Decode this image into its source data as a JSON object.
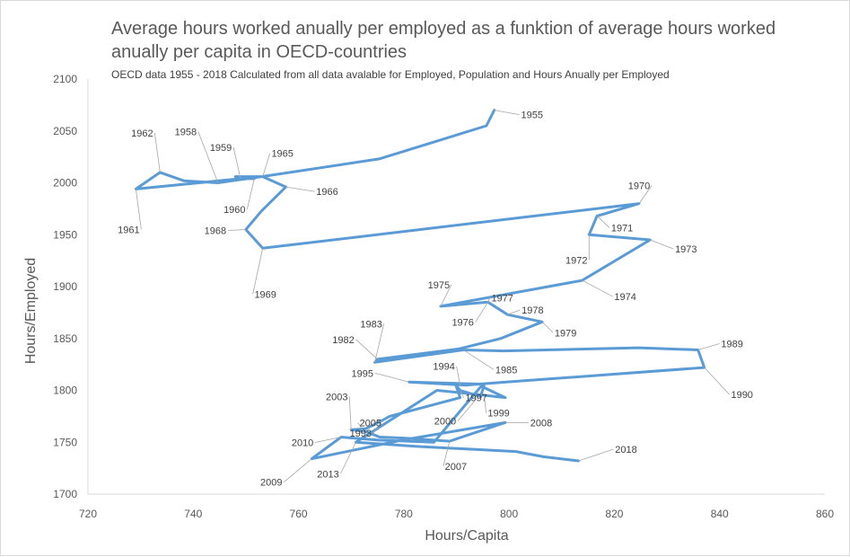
{
  "chart_data": {
    "type": "line",
    "title": "Average hours worked anually per employed as a funktion of average hours worked anually per capita in OECD-countries",
    "subtitle": "OECD data 1955  - 2018  Calculated from all data avalable for Employed, Population and Hours Anually per Employed",
    "xlabel": "Hours/Capita",
    "ylabel": "Hours/Employed",
    "xlim": [
      720,
      860
    ],
    "ylim": [
      1700,
      2100
    ],
    "xticks": [
      720,
      740,
      760,
      780,
      800,
      820,
      840,
      860
    ],
    "yticks": [
      1700,
      1750,
      1800,
      1850,
      1900,
      1950,
      2000,
      2050,
      2100
    ],
    "grid": false,
    "color": "#5b9bd5",
    "series": [
      {
        "x": [
          797.2,
          795.7,
          775.3,
          753.0,
          744.7,
          738.2,
          733.7,
          729.1,
          749.0,
          751.6,
          748.0,
          753.2,
          757.6,
          753.0,
          750.0,
          753.2,
          824.7,
          816.7,
          815.2,
          826.8,
          813.9,
          787.0,
          796.0,
          799.7,
          806.3,
          798.4,
          790.5,
          775.0,
          774.5,
          791.3,
          799.0,
          824.7,
          835.9,
          837.1,
          799.4,
          791.7,
          781.0,
          795.3,
          794.6,
          790.7,
          789.9,
          790.7,
          777.3,
          775.9,
          772.8,
          770.0,
          773.0,
          775.4,
          780.0,
          788.7,
          799.3,
          779.7,
          762.5,
          768.1,
          775.2,
          785.7,
          794.7,
          799.3,
          794.0,
          786.3,
          770.9,
          782.4,
          801.3,
          806.5,
          813.2
        ],
        "y": [
          2070,
          2055,
          2023,
          2006,
          2000,
          2002,
          2010,
          1994,
          2004,
          2004,
          2006,
          2006,
          1996,
          1973,
          1955,
          1937,
          1980,
          1968,
          1950,
          1945,
          1906,
          1881,
          1885,
          1873,
          1866,
          1850,
          1840,
          1830,
          1827,
          1839,
          1838,
          1841,
          1839,
          1822,
          1808,
          1805,
          1808,
          1806,
          1794,
          1800,
          1805,
          1793,
          1775,
          1771,
          1763,
          1762,
          1760,
          1755,
          1754,
          1751,
          1769,
          1752,
          1734,
          1755,
          1752,
          1750,
          1804,
          1793,
          1796,
          1800,
          1750,
          1746,
          1741,
          1736,
          1732
        ]
      }
    ],
    "point_labels": [
      {
        "text": "1955",
        "x": 797.2,
        "y": 2070
      },
      {
        "text": "1958",
        "x": 744.7,
        "y": 2000
      },
      {
        "text": "1959",
        "x": 749.0,
        "y": 2004
      },
      {
        "text": "1960",
        "x": 751.6,
        "y": 2004
      },
      {
        "text": "1961",
        "x": 729.1,
        "y": 1994
      },
      {
        "text": "1962",
        "x": 733.7,
        "y": 2010
      },
      {
        "text": "1965",
        "x": 753.2,
        "y": 2006
      },
      {
        "text": "1966",
        "x": 757.6,
        "y": 1996
      },
      {
        "text": "1968",
        "x": 750.0,
        "y": 1955
      },
      {
        "text": "1969",
        "x": 753.2,
        "y": 1937
      },
      {
        "text": "1970",
        "x": 824.7,
        "y": 1980
      },
      {
        "text": "1971",
        "x": 816.7,
        "y": 1968
      },
      {
        "text": "1972",
        "x": 815.2,
        "y": 1950
      },
      {
        "text": "1973",
        "x": 826.8,
        "y": 1945
      },
      {
        "text": "1974",
        "x": 813.9,
        "y": 1906
      },
      {
        "text": "1975",
        "x": 787.0,
        "y": 1881
      },
      {
        "text": "1976",
        "x": 796.0,
        "y": 1885
      },
      {
        "text": "1977",
        "x": 796.0,
        "y": 1885
      },
      {
        "text": "1978",
        "x": 799.7,
        "y": 1873
      },
      {
        "text": "1979",
        "x": 806.3,
        "y": 1866
      },
      {
        "text": "1982",
        "x": 775.0,
        "y": 1830
      },
      {
        "text": "1983",
        "x": 774.5,
        "y": 1827
      },
      {
        "text": "1985",
        "x": 791.3,
        "y": 1839
      },
      {
        "text": "1989",
        "x": 835.9,
        "y": 1839
      },
      {
        "text": "1990",
        "x": 837.1,
        "y": 1822
      },
      {
        "text": "1993",
        "x": 775.9,
        "y": 1771
      },
      {
        "text": "1994",
        "x": 790.7,
        "y": 1805
      },
      {
        "text": "1995",
        "x": 781.0,
        "y": 1808
      },
      {
        "text": "1997",
        "x": 790.7,
        "y": 1800
      },
      {
        "text": "1999",
        "x": 795.3,
        "y": 1794
      },
      {
        "text": "2000",
        "x": 794.0,
        "y": 1793
      },
      {
        "text": "2003",
        "x": 770.0,
        "y": 1762
      },
      {
        "text": "2005",
        "x": 773.0,
        "y": 1755
      },
      {
        "text": "2007",
        "x": 788.7,
        "y": 1751
      },
      {
        "text": "2008",
        "x": 799.3,
        "y": 1769
      },
      {
        "text": "2009",
        "x": 762.5,
        "y": 1734
      },
      {
        "text": "2010",
        "x": 768.1,
        "y": 1755
      },
      {
        "text": "2013",
        "x": 770.9,
        "y": 1750
      },
      {
        "text": "2018",
        "x": 813.2,
        "y": 1732
      }
    ]
  }
}
